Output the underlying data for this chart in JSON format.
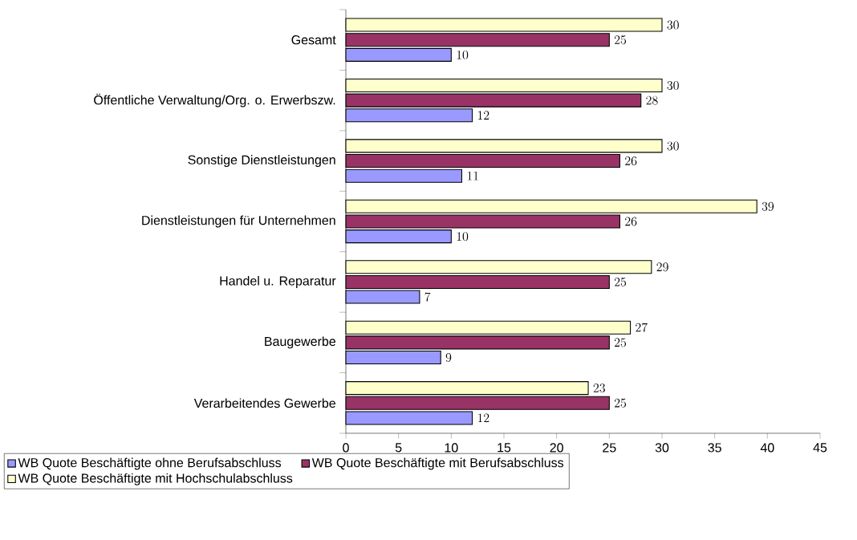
{
  "chart_data": {
    "type": "bar",
    "orientation": "horizontal",
    "categories": [
      "Gesamt",
      "Öffentliche Verwaltung/Org. o. Erwerbszw.",
      "Sonstige Dienstleistungen",
      "Dienstleistungen für Unternehmen",
      "Handel u. Reparatur",
      "Baugewerbe",
      "Verarbeitendes Gewerbe"
    ],
    "series": [
      {
        "name": "WB Quote Beschäftigte ohne Berufsabschluss",
        "color": "#9999ff",
        "values": [
          10,
          12,
          11,
          10,
          7,
          9,
          12
        ]
      },
      {
        "name": "WB Quote Beschäftigte mit Berufsabschluss",
        "color": "#993366",
        "values": [
          25,
          28,
          26,
          26,
          25,
          25,
          25
        ]
      },
      {
        "name": "WB Quote Beschäftigte mit Hochschulabschluss",
        "color": "#ffffcc",
        "values": [
          30,
          30,
          30,
          39,
          29,
          27,
          23
        ]
      }
    ],
    "xlim": [
      0,
      45
    ],
    "xticks": [
      0,
      5,
      10,
      15,
      20,
      25,
      30,
      35,
      40,
      45
    ],
    "data_labels": true,
    "legend": "bottom",
    "grid": false
  }
}
